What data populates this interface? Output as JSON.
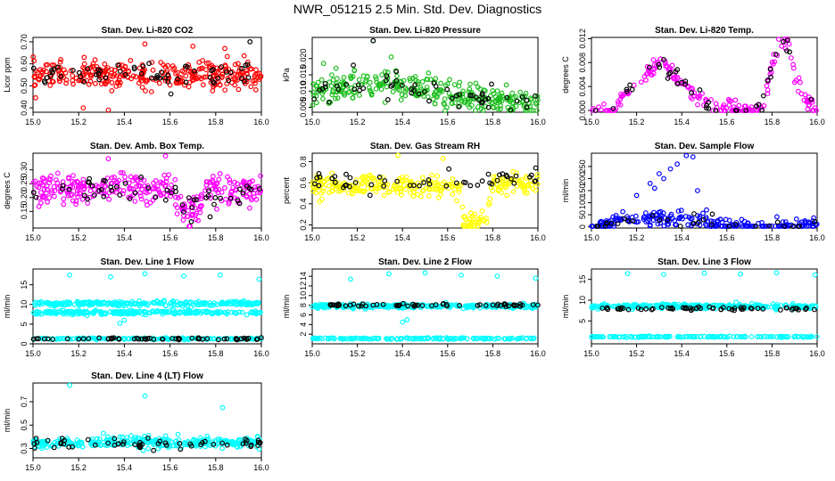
{
  "title": "NWR_051215  2.5 Min. Std. Dev. Diagnostics",
  "colors": {
    "red": "#ff0000",
    "green": "#1fbf1f",
    "magenta": "#ff00ff",
    "yellow": "#ffff00",
    "blue": "#0000ff",
    "cyan": "#00ffff",
    "black": "#000000"
  },
  "chart_data": [
    {
      "id": "p1",
      "type": "scatter",
      "title": "Stan. Dev. Li-820 CO2",
      "ylabel": "Licor ppm",
      "xlim": [
        15.0,
        16.0
      ],
      "ylim": [
        0.38,
        0.72
      ],
      "xticks": [
        "15.0",
        "15.2",
        "15.4",
        "15.6",
        "15.8",
        "16.0"
      ],
      "yticks": [
        "0.40",
        "0.50",
        "0.60",
        "0.70"
      ],
      "series": [
        {
          "name": "main",
          "color": "red",
          "center": 0.55,
          "spread": 0.05,
          "n": 320,
          "points": [
            [
              15.22,
              0.4
            ],
            [
              15.33,
              0.39
            ],
            [
              15.49,
              0.69
            ],
            [
              15.7,
              0.68
            ],
            [
              15.84,
              0.67
            ]
          ]
        },
        {
          "name": "black",
          "color": "black",
          "center": 0.55,
          "spread": 0.05,
          "n": 60,
          "points": [
            [
              15.95,
              0.7
            ]
          ]
        }
      ]
    },
    {
      "id": "p2",
      "type": "scatter",
      "title": "Stan. Dev. Li-820 Pressure",
      "ylabel": "kPa",
      "xlim": [
        15.0,
        16.0
      ],
      "ylim": [
        0.0035,
        0.0265
      ],
      "xticks": [
        "15.0",
        "15.2",
        "15.4",
        "15.6",
        "15.8",
        "16.0"
      ],
      "yticks": [
        "0.005",
        "0.010",
        "0.015",
        "0.020"
      ],
      "series": [
        {
          "name": "main",
          "color": "green",
          "trend": [
            [
              15.0,
              0.0095
            ],
            [
              15.25,
              0.012
            ],
            [
              15.5,
              0.0105
            ],
            [
              15.75,
              0.0075
            ],
            [
              16.0,
              0.006
            ]
          ],
          "spread": 0.0035,
          "n": 320,
          "points": [
            [
              15.27,
              0.0255
            ],
            [
              15.35,
              0.0205
            ],
            [
              15.05,
              0.0185
            ]
          ]
        },
        {
          "name": "black",
          "color": "black",
          "trend": [
            [
              15.0,
              0.0095
            ],
            [
              15.25,
              0.012
            ],
            [
              15.5,
              0.0105
            ],
            [
              15.75,
              0.0075
            ],
            [
              16.0,
              0.006
            ]
          ],
          "spread": 0.0035,
          "n": 55,
          "points": [
            [
              15.27,
              0.0255
            ]
          ]
        }
      ]
    },
    {
      "id": "p3",
      "type": "scatter",
      "title": "Stan. Dev. Li-820 Temp.",
      "ylabel": "degrees C",
      "xlim": [
        15.0,
        16.0
      ],
      "ylim": [
        -0.0003,
        0.0122
      ],
      "xticks": [
        "15.0",
        "15.2",
        "15.4",
        "15.6",
        "15.8",
        "16.0"
      ],
      "yticks": [
        "0.000",
        "0.004",
        "0.008",
        "0.012"
      ],
      "series": [
        {
          "name": "main",
          "color": "magenta",
          "trend": [
            [
              15.0,
              0.0
            ],
            [
              15.1,
              0.0
            ],
            [
              15.13,
              0.002
            ],
            [
              15.3,
              0.008
            ],
            [
              15.45,
              0.003
            ],
            [
              15.55,
              0.0
            ],
            [
              15.75,
              0.0
            ],
            [
              15.82,
              0.01
            ],
            [
              15.87,
              0.012
            ],
            [
              15.9,
              0.006
            ],
            [
              15.95,
              0.002
            ],
            [
              16.0,
              0.0
            ]
          ],
          "spread": 0.0012,
          "n": 200,
          "points": []
        },
        {
          "name": "black",
          "color": "black",
          "trend": [
            [
              15.0,
              0.0
            ],
            [
              15.1,
              0.0
            ],
            [
              15.13,
              0.002
            ],
            [
              15.3,
              0.008
            ],
            [
              15.45,
              0.003
            ],
            [
              15.55,
              0.0
            ],
            [
              15.75,
              0.0
            ],
            [
              15.82,
              0.01
            ],
            [
              15.87,
              0.012
            ],
            [
              15.9,
              0.006
            ],
            [
              15.95,
              0.002
            ],
            [
              16.0,
              0.0
            ]
          ],
          "spread": 0.0012,
          "n": 40,
          "points": [
            [
              15.32,
              0.0085
            ],
            [
              15.85,
              0.0115
            ]
          ]
        }
      ]
    },
    {
      "id": "p4",
      "type": "scatter",
      "title": "Stan. Dev. Amb. Box Temp.",
      "ylabel": "degrees C",
      "xlim": [
        15.0,
        16.0
      ],
      "ylim": [
        0.09,
        0.36
      ],
      "xticks": [
        "15.0",
        "15.2",
        "15.4",
        "15.6",
        "15.8",
        "16.0"
      ],
      "yticks": [
        "0.15",
        "0.20",
        "0.25",
        "0.30"
      ],
      "series": [
        {
          "name": "main",
          "color": "magenta",
          "trend": [
            [
              15.0,
              0.23
            ],
            [
              15.6,
              0.23
            ],
            [
              15.65,
              0.17
            ],
            [
              15.68,
              0.12
            ],
            [
              15.73,
              0.18
            ],
            [
              15.78,
              0.23
            ],
            [
              16.0,
              0.22
            ]
          ],
          "spread": 0.045,
          "n": 320,
          "points": [
            [
              15.58,
              0.35
            ],
            [
              15.33,
              0.34
            ]
          ]
        },
        {
          "name": "black",
          "color": "black",
          "trend": [
            [
              15.0,
              0.22
            ],
            [
              15.6,
              0.22
            ],
            [
              15.66,
              0.17
            ],
            [
              15.72,
              0.18
            ],
            [
              16.0,
              0.22
            ]
          ],
          "spread": 0.04,
          "n": 55,
          "points": []
        }
      ]
    },
    {
      "id": "p5",
      "type": "scatter",
      "title": "Stan. Dev. Gas Stream RH",
      "ylabel": "percent",
      "xlim": [
        15.0,
        16.0
      ],
      "ylim": [
        0.17,
        0.88
      ],
      "xticks": [
        "15.0",
        "15.2",
        "15.4",
        "15.6",
        "15.8",
        "16.0"
      ],
      "yticks": [
        "0.2",
        "0.4",
        "0.6",
        "0.8"
      ],
      "series": [
        {
          "name": "main",
          "color": "yellow",
          "trend": [
            [
              15.0,
              0.58
            ],
            [
              15.66,
              0.57
            ],
            [
              15.67,
              0.22
            ],
            [
              15.78,
              0.25
            ],
            [
              15.79,
              0.58
            ],
            [
              16.0,
              0.58
            ]
          ],
          "spread": 0.08,
          "n": 300,
          "points": [
            [
              15.38,
              0.86
            ],
            [
              15.58,
              0.83
            ],
            [
              15.72,
              0.3
            ]
          ]
        },
        {
          "name": "black",
          "color": "black",
          "trend": [
            [
              15.0,
              0.6
            ],
            [
              15.66,
              0.6
            ],
            [
              15.79,
              0.6
            ],
            [
              16.0,
              0.62
            ]
          ],
          "spread": 0.08,
          "n": 50,
          "points": [
            [
              15.99,
              0.74
            ]
          ]
        }
      ]
    },
    {
      "id": "p6",
      "type": "scatter",
      "title": "Stan. Dev. Sample Flow",
      "ylabel": "ml/min",
      "xlim": [
        15.0,
        16.0
      ],
      "ylim": [
        -5,
        305
      ],
      "xticks": [
        "15.0",
        "15.2",
        "15.4",
        "15.6",
        "15.8",
        "16.0"
      ],
      "yticks": [
        "0",
        "50",
        "100",
        "150",
        "200",
        "250"
      ],
      "series": [
        {
          "name": "main",
          "color": "blue",
          "trend": [
            [
              15.0,
              2
            ],
            [
              15.08,
              5
            ],
            [
              15.12,
              30
            ],
            [
              15.5,
              30
            ],
            [
              15.55,
              5
            ],
            [
              15.6,
              2
            ],
            [
              16.0,
              2
            ]
          ],
          "spread": 30,
          "n": 230,
          "points": [
            [
              15.3,
              220
            ],
            [
              15.32,
              200
            ],
            [
              15.42,
              295
            ],
            [
              15.45,
              290
            ],
            [
              15.38,
              260
            ],
            [
              15.26,
              180
            ],
            [
              15.35,
              240
            ],
            [
              15.28,
              160
            ],
            [
              15.2,
              130
            ],
            [
              15.47,
              150
            ]
          ]
        },
        {
          "name": "black",
          "color": "black",
          "trend": [
            [
              15.0,
              2
            ],
            [
              15.1,
              20
            ],
            [
              15.5,
              30
            ],
            [
              15.6,
              2
            ],
            [
              16.0,
              2
            ]
          ],
          "spread": 25,
          "n": 30,
          "points": []
        }
      ]
    },
    {
      "id": "p7",
      "type": "scatter",
      "title": "Stan. Dev. Line 1 Flow",
      "ylabel": "ml/min",
      "xlim": [
        15.0,
        16.0
      ],
      "ylim": [
        0,
        19
      ],
      "xticks": [
        "15.0",
        "15.2",
        "15.4",
        "15.6",
        "15.8",
        "16.0"
      ],
      "yticks": [
        "0",
        "5",
        "10",
        "15"
      ],
      "series": [
        {
          "name": "band-high",
          "color": "cyan",
          "center": 10.2,
          "spread": 0.45,
          "n": 260,
          "points": [
            [
              15.16,
              17.5
            ],
            [
              15.34,
              17.0
            ],
            [
              15.49,
              17.8
            ],
            [
              15.66,
              17.2
            ],
            [
              15.82,
              17.5
            ],
            [
              15.99,
              16.4
            ]
          ]
        },
        {
          "name": "band-mid",
          "color": "cyan",
          "center": 8.0,
          "spread": 0.4,
          "n": 240,
          "points": [
            [
              15.38,
              5.2
            ],
            [
              15.4,
              6.0
            ]
          ]
        },
        {
          "name": "band-low",
          "color": "cyan",
          "center": 1.3,
          "spread": 0.15,
          "n": 160,
          "points": []
        },
        {
          "name": "black",
          "color": "black",
          "center": 1.3,
          "spread": 0.2,
          "n": 60,
          "points": []
        }
      ]
    },
    {
      "id": "p8",
      "type": "scatter",
      "title": "Stan. Dev. Line 2 Flow",
      "ylabel": "ml/min",
      "xlim": [
        15.0,
        16.0
      ],
      "ylim": [
        0,
        15.5
      ],
      "xticks": [
        "15.0",
        "15.2",
        "15.4",
        "15.6",
        "15.8",
        "16.0"
      ],
      "yticks": [
        "2",
        "4",
        "6",
        "8",
        "10",
        "12",
        "14"
      ],
      "series": [
        {
          "name": "band-mid",
          "color": "cyan",
          "center": 7.8,
          "spread": 0.35,
          "n": 300,
          "points": [
            [
              15.17,
              13.4
            ],
            [
              15.34,
              14.5
            ],
            [
              15.5,
              14.7
            ],
            [
              15.66,
              14.2
            ],
            [
              15.82,
              14.0
            ],
            [
              15.99,
              13.6
            ],
            [
              15.4,
              4.5
            ],
            [
              15.42,
              5.0
            ]
          ]
        },
        {
          "name": "band-low",
          "color": "cyan",
          "center": 1.1,
          "spread": 0.12,
          "n": 160,
          "points": []
        },
        {
          "name": "black",
          "color": "black",
          "center": 8.0,
          "spread": 0.25,
          "n": 60,
          "points": []
        }
      ]
    },
    {
      "id": "p9",
      "type": "scatter",
      "title": "Stan. Dev. Line 3 Flow",
      "ylabel": "ml/min",
      "xlim": [
        15.0,
        16.0
      ],
      "ylim": [
        -0.5,
        17.5
      ],
      "xticks": [
        "15.0",
        "15.2",
        "15.4",
        "15.6",
        "15.8",
        "16.0"
      ],
      "yticks": [
        "5",
        "10",
        "15"
      ],
      "series": [
        {
          "name": "band-mid",
          "color": "cyan",
          "center": 8.5,
          "spread": 0.45,
          "n": 300,
          "points": [
            [
              15.16,
              16.4
            ],
            [
              15.32,
              16.2
            ],
            [
              15.5,
              16.5
            ],
            [
              15.66,
              16.3
            ],
            [
              15.82,
              16.6
            ],
            [
              15.99,
              16.1
            ]
          ]
        },
        {
          "name": "band-low",
          "color": "cyan",
          "center": 1.2,
          "spread": 0.12,
          "n": 160,
          "points": []
        },
        {
          "name": "black",
          "color": "black",
          "center": 8.0,
          "spread": 0.3,
          "n": 60,
          "points": []
        }
      ]
    },
    {
      "id": "p10",
      "type": "scatter",
      "title": "Stan. Dev. Line 4 (LT) Flow",
      "ylabel": "ml/min",
      "xlim": [
        15.0,
        16.0
      ],
      "ylim": [
        0.22,
        0.86
      ],
      "xticks": [
        "15.0",
        "15.2",
        "15.4",
        "15.6",
        "15.8",
        "16.0"
      ],
      "yticks": [
        "0.3",
        "0.5",
        "0.7"
      ],
      "series": [
        {
          "name": "main",
          "color": "cyan",
          "center": 0.35,
          "spread": 0.04,
          "n": 320,
          "points": [
            [
              15.16,
              0.84
            ],
            [
              15.49,
              0.75
            ],
            [
              15.83,
              0.65
            ]
          ]
        },
        {
          "name": "black",
          "color": "black",
          "center": 0.34,
          "spread": 0.04,
          "n": 55,
          "points": []
        }
      ]
    }
  ]
}
